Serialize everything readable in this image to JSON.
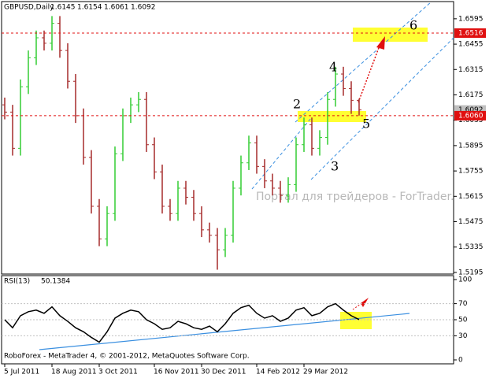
{
  "chart_data": [
    {
      "type": "ohlc",
      "title": "GBPUSD,Daily",
      "watermark": "Портал для трейдеров - ForTrader.ru",
      "footer": "RoboForex - MetaTrader 4, © 2001-2012, MetaQuotes Software Corp.",
      "categories": [
        "5 Jul 2011",
        null,
        null,
        null,
        null,
        null,
        "18 Aug 2011",
        null,
        null,
        null,
        null,
        null,
        "3 Oct 2011",
        null,
        null,
        null,
        null,
        null,
        null,
        "16 Nov 2011",
        null,
        null,
        null,
        null,
        null,
        "30 Dec 2011",
        null,
        null,
        null,
        null,
        null,
        null,
        "14 Feb 2012",
        null,
        null,
        null,
        null,
        null,
        "29 Mar 2012",
        null,
        null,
        null,
        null,
        null,
        null,
        null
      ],
      "open": [
        1.612,
        1.608,
        1.588,
        1.622,
        1.638,
        1.649,
        1.646,
        1.657,
        1.642,
        1.625,
        1.606,
        1.583,
        1.556,
        1.538,
        1.552,
        1.585,
        1.606,
        1.612,
        1.615,
        1.59,
        1.575,
        1.556,
        1.552,
        1.566,
        1.561,
        1.552,
        1.543,
        1.54,
        1.532,
        1.54,
        1.566,
        1.58,
        1.591,
        1.578,
        1.57,
        1.566,
        1.562,
        1.568,
        1.59,
        1.601,
        1.588,
        1.594,
        1.615,
        1.629,
        1.621,
        1.6145
      ],
      "high": [
        1.616,
        1.612,
        1.626,
        1.642,
        1.653,
        1.653,
        1.661,
        1.661,
        1.646,
        1.629,
        1.61,
        1.587,
        1.56,
        1.556,
        1.589,
        1.61,
        1.616,
        1.619,
        1.619,
        1.594,
        1.579,
        1.56,
        1.57,
        1.57,
        1.565,
        1.556,
        1.547,
        1.544,
        1.544,
        1.57,
        1.584,
        1.595,
        1.595,
        1.582,
        1.574,
        1.57,
        1.572,
        1.594,
        1.605,
        1.605,
        1.598,
        1.619,
        1.633,
        1.633,
        1.625,
        1.6154
      ],
      "low": [
        1.604,
        1.584,
        1.584,
        1.618,
        1.634,
        1.642,
        1.642,
        1.638,
        1.621,
        1.602,
        1.579,
        1.552,
        1.534,
        1.534,
        1.548,
        1.581,
        1.602,
        1.608,
        1.586,
        1.571,
        1.552,
        1.548,
        1.548,
        1.557,
        1.548,
        1.539,
        1.536,
        1.521,
        1.528,
        1.536,
        1.562,
        1.576,
        1.574,
        1.566,
        1.562,
        1.558,
        1.558,
        1.564,
        1.586,
        1.584,
        1.584,
        1.59,
        1.611,
        1.617,
        1.607,
        1.6061
      ],
      "close": [
        1.608,
        1.588,
        1.622,
        1.638,
        1.649,
        1.646,
        1.657,
        1.642,
        1.625,
        1.606,
        1.583,
        1.556,
        1.538,
        1.552,
        1.585,
        1.606,
        1.612,
        1.615,
        1.59,
        1.575,
        1.556,
        1.552,
        1.566,
        1.561,
        1.552,
        1.543,
        1.54,
        1.532,
        1.54,
        1.566,
        1.58,
        1.591,
        1.578,
        1.57,
        1.566,
        1.562,
        1.568,
        1.59,
        1.601,
        1.588,
        1.594,
        1.615,
        1.629,
        1.621,
        1.6145,
        1.6092
      ],
      "up_color": "#33cc33",
      "down_color": "#a52a2a",
      "hlines": [
        {
          "value": 1.6516,
          "label": "1.6516"
        },
        {
          "value": 1.606,
          "label": "1.6060"
        }
      ],
      "hline_color": "#e01010",
      "wave_labels": [
        "2",
        "3",
        "4",
        "5",
        "6"
      ],
      "ylim": [
        1.5186,
        1.669
      ],
      "yticks": [
        1.6595,
        1.6455,
        1.6315,
        1.6175,
        1.6035,
        1.5895,
        1.5755,
        1.5615,
        1.5475,
        1.5335,
        1.5195
      ]
    },
    {
      "type": "line",
      "title": "RSI(13)",
      "color": "#000000",
      "values": [
        50,
        40,
        55,
        60,
        62,
        58,
        66,
        55,
        48,
        40,
        35,
        28,
        22,
        35,
        52,
        58,
        62,
        60,
        50,
        45,
        38,
        40,
        48,
        45,
        40,
        38,
        42,
        35,
        45,
        58,
        65,
        68,
        58,
        52,
        55,
        48,
        52,
        62,
        65,
        55,
        58,
        66,
        70,
        62,
        55,
        50.1384
      ],
      "ylim": [
        -4.9,
        104.9
      ],
      "yticks": [
        100,
        70,
        50,
        30,
        0
      ]
    }
  ]
}
